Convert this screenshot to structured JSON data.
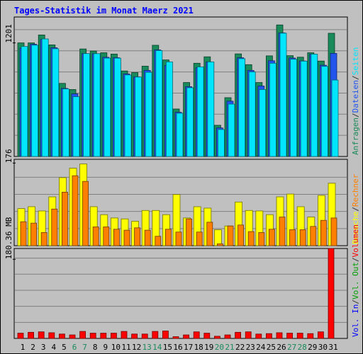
{
  "chart_data": {
    "type": "bar",
    "title": "Tages-Statistik im Monat Maerz 2021",
    "days": [
      "1",
      "2",
      "3",
      "4",
      "5",
      "6",
      "7",
      "8",
      "9",
      "10",
      "11",
      "12",
      "13",
      "14",
      "15",
      "16",
      "17",
      "18",
      "19",
      "20",
      "21",
      "22",
      "23",
      "24",
      "25",
      "26",
      "27",
      "28",
      "29",
      "30",
      "31"
    ],
    "weekend_days": [
      "6",
      "7",
      "13",
      "14",
      "20",
      "21",
      "27",
      "28"
    ],
    "panels": {
      "top": {
        "tick_label": "1201",
        "tick_value": 1201,
        "ylim": [
          0,
          1475
        ],
        "series": [
          {
            "name": "Anfragen",
            "color": "#1a8a5a",
            "values": [
              1201,
              1201,
              1285,
              1180,
              773,
              708,
              1137,
              1115,
              1097,
              1083,
              904,
              887,
              955,
              1176,
              1021,
              502,
              782,
              986,
              1054,
              330,
              622,
              1085,
              971,
              782,
              1064,
              1391,
              1066,
              1050,
              1097,
              1009,
              1303
            ]
          },
          {
            "name": "Dateien",
            "color": "#2255ee",
            "values": [
              1145,
              1187,
              1238,
              1150,
              720,
              662,
              1088,
              1087,
              1049,
              1045,
              873,
              842,
              910,
              1127,
              963,
              468,
              738,
              938,
              1000,
              302,
              585,
              1044,
              910,
              745,
              1012,
              1307,
              1041,
              1010,
              1081,
              965,
              1090
            ]
          },
          {
            "name": "Seiten",
            "color": "#00e6ff",
            "values": [
              1163,
              1177,
              1243,
              1139,
              714,
              632,
              1088,
              1087,
              1040,
              1040,
              862,
              840,
              890,
              1120,
              1000,
              457,
              727,
              947,
              1000,
              285,
              554,
              1034,
              894,
              708,
              986,
              1304,
              1028,
              1008,
              1082,
              953,
              808
            ]
          }
        ]
      },
      "middle": {
        "tick_label": "176",
        "tick_value": 176,
        "ylim": [
          0,
          184
        ],
        "series": [
          {
            "name": "Besuche",
            "color": "#ffff00",
            "values": [
              79,
              83,
              74,
              104,
              145,
              165,
              174,
              83,
              66,
              59,
              57,
              52,
              75,
              75,
              66,
              109,
              59,
              83,
              80,
              34,
              42,
              93,
              75,
              74,
              66,
              104,
              110,
              83,
              61,
              107,
              133
            ]
          },
          {
            "name": "Rechner",
            "color": "#ff8000",
            "values": [
              51,
              48,
              28,
              78,
              114,
              149,
              137,
              40,
              40,
              35,
              33,
              38,
              33,
              20,
              35,
              29,
              57,
              29,
              50,
              4,
              42,
              44,
              30,
              28,
              35,
              61,
              34,
              34,
              41,
              54,
              59
            ]
          }
        ]
      },
      "bottom": {
        "tick_label": "180.36 MB",
        "tick_value": 180.36,
        "ylim": [
          0,
          205
        ],
        "series": [
          {
            "name": "Vol. In",
            "color": "#0000ff",
            "values": [
              0,
              0,
              0,
              0,
              0,
              0,
              0,
              0,
              0,
              0,
              0,
              0,
              0,
              0,
              0,
              0,
              0,
              0,
              0,
              0,
              0,
              0,
              0,
              0,
              0,
              0,
              0,
              0,
              0,
              0,
              0
            ]
          },
          {
            "name": "Vol. Out",
            "color": "#00a000",
            "values": [
              0,
              0,
              0,
              0,
              0,
              0,
              0,
              0,
              0,
              0,
              0,
              0,
              0,
              0,
              0,
              0,
              0,
              0,
              0,
              0,
              0,
              0,
              0,
              0,
              0,
              0,
              0,
              0,
              0,
              0,
              0
            ]
          },
          {
            "name": "Volumen",
            "color": "#ff0000",
            "values": [
              12,
              14,
              15,
              13,
              10,
              8,
              16,
              12,
              12,
              12,
              16,
              10,
              10,
              16,
              17,
              4,
              8,
              15,
              12,
              5,
              8,
              14,
              15,
              10,
              11,
              13,
              12,
              12,
              11,
              15,
              205
            ]
          }
        ]
      }
    },
    "legend": {
      "top": [
        {
          "text": "Anfragen",
          "color": "#1a8a5a"
        },
        {
          "text": "/",
          "color": "#333333"
        },
        {
          "text": "Dateien",
          "color": "#2255ee"
        },
        {
          "text": "/",
          "color": "#333333"
        },
        {
          "text": "Seiten",
          "color": "#00e6ff"
        }
      ],
      "middle": [
        {
          "text": "Besuche",
          "color": "#ffff00"
        },
        {
          "text": "/",
          "color": "#333333"
        },
        {
          "text": "Rechner",
          "color": "#ff8000"
        }
      ],
      "bottom": [
        {
          "text": "Vol. In",
          "color": "#0000ff"
        },
        {
          "text": "/",
          "color": "#333333"
        },
        {
          "text": "Vol. Out",
          "color": "#00a000"
        },
        {
          "text": "/",
          "color": "#333333"
        },
        {
          "text": "Volumen",
          "color": "#ff0000"
        }
      ]
    }
  }
}
